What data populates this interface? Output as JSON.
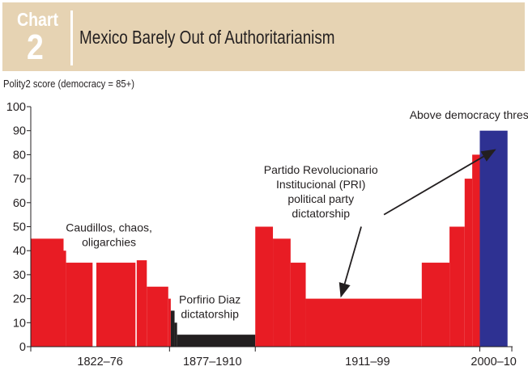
{
  "header": {
    "chart_word": "Chart",
    "chart_number": "2",
    "title": "Mexico Barely Out of Authoritarianism"
  },
  "chart_data": {
    "type": "bar",
    "title": "Mexico Barely Out of Authoritarianism",
    "ylabel": "Polity2 score (democracy = 85+)",
    "ylim": [
      0,
      100
    ],
    "yticks": [
      0,
      10,
      20,
      30,
      40,
      50,
      60,
      70,
      80,
      90,
      100
    ],
    "xlim": [
      1822,
      2013
    ],
    "xtick_years": [
      1822,
      1877,
      1911,
      2000
    ],
    "period_labels": [
      {
        "label": "1822–76",
        "from": 1822,
        "to": 1877
      },
      {
        "label": "1877–1910",
        "from": 1877,
        "to": 1911
      },
      {
        "label": "1911–99",
        "from": 1911,
        "to": 2000
      },
      {
        "label": "2000–10",
        "from": 2000,
        "to": 2011
      }
    ],
    "colors": {
      "red": "#e81c24",
      "black": "#231f20",
      "blue": "#2e3192"
    },
    "bars": [
      {
        "start": 1822,
        "end": 1835,
        "value": 45,
        "color": "red"
      },
      {
        "start": 1835,
        "end": 1836,
        "value": 40,
        "color": "red"
      },
      {
        "start": 1836,
        "end": 1846.5,
        "value": 35,
        "color": "red"
      },
      {
        "start": 1848,
        "end": 1863.5,
        "value": 35,
        "color": "red"
      },
      {
        "start": 1864,
        "end": 1868,
        "value": 36,
        "color": "red"
      },
      {
        "start": 1868,
        "end": 1876.5,
        "value": 25,
        "color": "red"
      },
      {
        "start": 1876.5,
        "end": 1877.5,
        "value": 20,
        "color": "red"
      },
      {
        "start": 1877.5,
        "end": 1879,
        "value": 15,
        "color": "black"
      },
      {
        "start": 1879,
        "end": 1880,
        "value": 10,
        "color": "black"
      },
      {
        "start": 1880,
        "end": 1911,
        "value": 5,
        "color": "black"
      },
      {
        "start": 1911,
        "end": 1918,
        "value": 50,
        "color": "red"
      },
      {
        "start": 1918,
        "end": 1925,
        "value": 45,
        "color": "red"
      },
      {
        "start": 1925,
        "end": 1931,
        "value": 35,
        "color": "red"
      },
      {
        "start": 1931,
        "end": 1977,
        "value": 20,
        "color": "red"
      },
      {
        "start": 1977,
        "end": 1988,
        "value": 35,
        "color": "red"
      },
      {
        "start": 1988,
        "end": 1994,
        "value": 50,
        "color": "red"
      },
      {
        "start": 1994,
        "end": 1997,
        "value": 70,
        "color": "red"
      },
      {
        "start": 1997,
        "end": 2000,
        "value": 80,
        "color": "red"
      },
      {
        "start": 2000,
        "end": 2011,
        "value": 90,
        "color": "blue"
      }
    ],
    "annotations": [
      {
        "lines": [
          "Above democracy threshold"
        ],
        "x": 2000,
        "y": 95
      },
      {
        "lines": [
          "Partido Revolucionario",
          "Institucional (PRI)",
          "political party",
          "dictatorship"
        ],
        "x": 1937,
        "y": 72
      },
      {
        "lines": [
          "Caudillos, chaos,",
          "oligarchies"
        ],
        "x": 1853,
        "y": 48
      },
      {
        "lines": [
          "Porfirio Diaz",
          "dictatorship"
        ],
        "x": 1893,
        "y": 18
      }
    ],
    "arrows": [
      {
        "from": [
          1962,
          55
        ],
        "to": [
          2006,
          82
        ]
      },
      {
        "from": [
          1953,
          50
        ],
        "to": [
          1945,
          21
        ]
      }
    ]
  }
}
